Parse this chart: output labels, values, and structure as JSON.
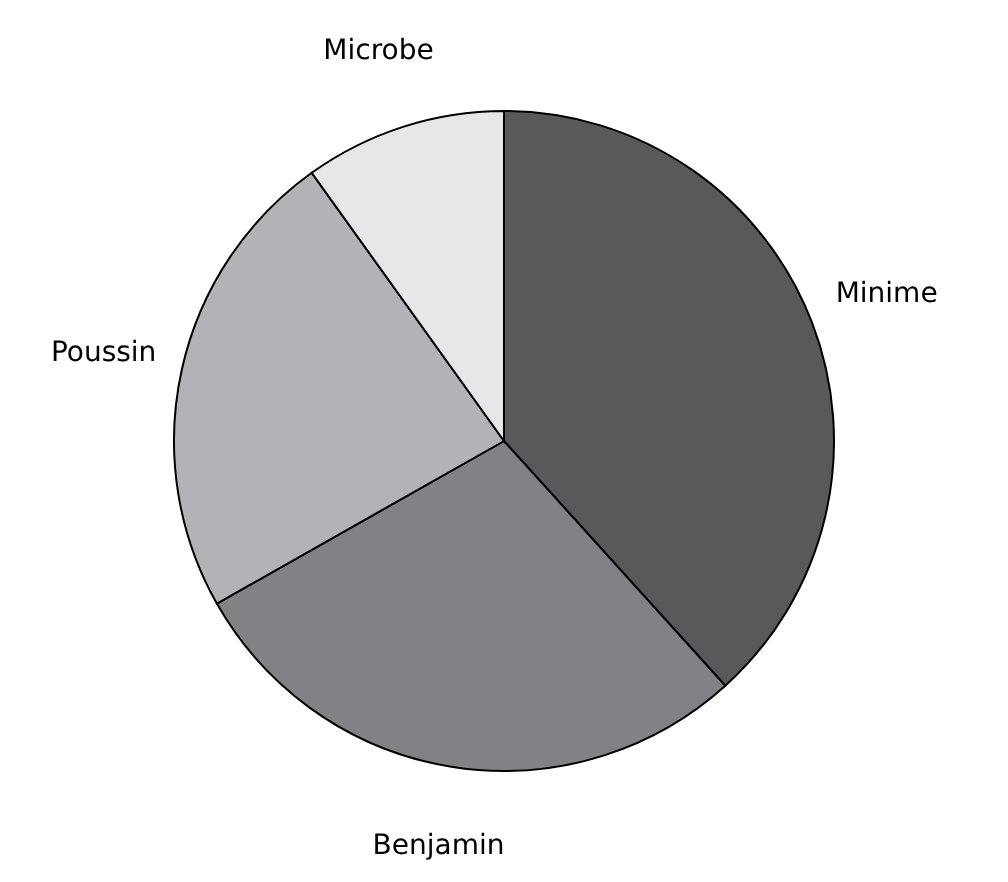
{
  "chart_data": {
    "type": "pie",
    "categories": [
      "Minime",
      "Benjamin",
      "Poussin",
      "Microbe"
    ],
    "values": [
      38.3,
      28.5,
      23.3,
      9.9
    ],
    "colors": [
      "#58595b",
      "#808285",
      "#b1b3b6",
      "#e6e7e8"
    ],
    "legend": false
  }
}
